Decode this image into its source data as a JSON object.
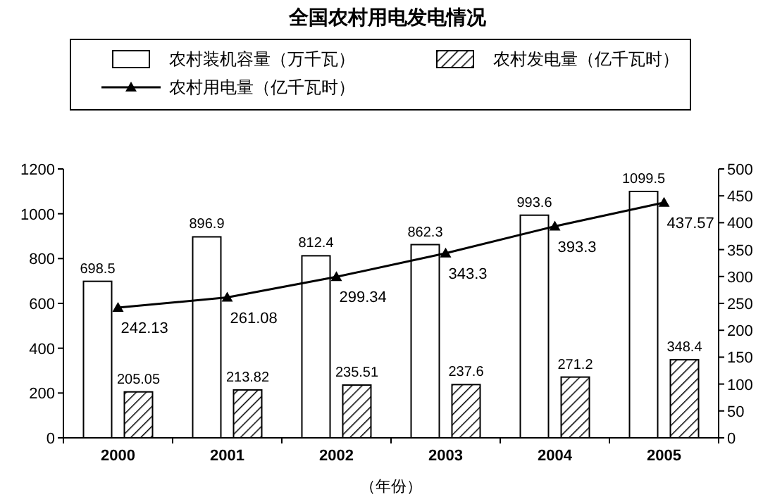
{
  "chart_data": {
    "type": "bar",
    "title": "全国农村用电发电情况",
    "xlabel": "（年份）",
    "categories": [
      "2000",
      "2001",
      "2002",
      "2003",
      "2004",
      "2005"
    ],
    "series": [
      {
        "name": "农村装机容量（万千瓦）",
        "color": "#ffffff",
        "values": [
          698.5,
          896.9,
          812.4,
          862.3,
          993.6,
          1099.5
        ]
      },
      {
        "name": "农村发电量（亿千瓦时）",
        "color": "#000000",
        "values": [
          205.05,
          213.82,
          235.51,
          237.6,
          271.2,
          348.4
        ]
      },
      {
        "name": "农村用电量（亿千瓦时）",
        "type": "line",
        "axis": "y2",
        "color": "#000000",
        "marker": "triangle",
        "values": [
          242.13,
          261.08,
          299.34,
          343.3,
          393.3,
          437.57
        ]
      }
    ],
    "ylim": [
      0,
      1200
    ],
    "yticks": [
      0,
      200,
      400,
      600,
      800,
      1000,
      1200
    ],
    "y2lim": [
      0,
      500
    ],
    "y2ticks": [
      0,
      50,
      100,
      150,
      200,
      250,
      300,
      350,
      400,
      450,
      500
    ],
    "data_labels": true,
    "legend": "top",
    "grid": false
  }
}
